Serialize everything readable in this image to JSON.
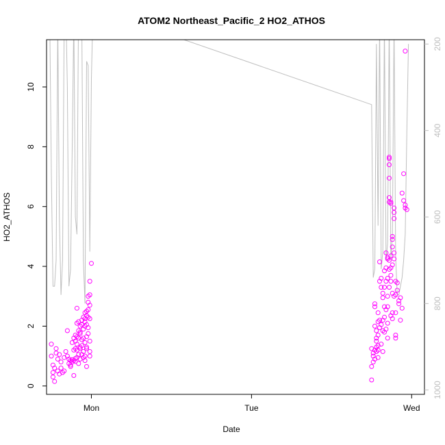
{
  "chart_data": {
    "type": "scatter",
    "title": "ATOM2 Northeast_Pacific_2 HO2_ATHOS",
    "xlabel": "Date",
    "ylabel": "HO2_ATHOS",
    "x_unit": "days since Mon 00:00",
    "xlim": [
      -0.28,
      2.08
    ],
    "ylim": [
      -0.28,
      11.58
    ],
    "x_ticks": [
      {
        "value": 0,
        "label": "Mon"
      },
      {
        "value": 1,
        "label": "Tue"
      },
      {
        "value": 2,
        "label": "Wed"
      }
    ],
    "y_ticks": [
      0,
      2,
      4,
      6,
      8,
      10
    ],
    "y2_ticks": [
      200,
      400,
      600,
      800,
      1000
    ],
    "y2lim": [
      1010,
      190
    ],
    "grid": false,
    "colors": {
      "points": "#ff00ff",
      "altitude_line": "#bebebe",
      "axis": "#000000"
    },
    "series": [
      {
        "role": "scatter-primary-axis",
        "values": [
          [
            -0.25,
            1.4
          ],
          [
            -0.25,
            1.0
          ],
          [
            -0.24,
            0.7
          ],
          [
            -0.24,
            0.45
          ],
          [
            -0.24,
            0.3
          ],
          [
            -0.23,
            0.15
          ],
          [
            -0.23,
            0.6
          ],
          [
            -0.22,
            1.1
          ],
          [
            -0.22,
            1.25
          ],
          [
            -0.21,
            0.9
          ],
          [
            -0.21,
            0.5
          ],
          [
            -0.2,
            0.4
          ],
          [
            -0.2,
            1.05
          ],
          [
            -0.19,
            0.8
          ],
          [
            -0.19,
            0.6
          ],
          [
            -0.18,
            0.45
          ],
          [
            -0.17,
            0.95
          ],
          [
            -0.17,
            0.5
          ],
          [
            -0.16,
            1.15
          ],
          [
            -0.15,
            1.85
          ],
          [
            -0.15,
            1.0
          ],
          [
            -0.14,
            0.75
          ],
          [
            -0.14,
            0.9
          ],
          [
            -0.13,
            0.85
          ],
          [
            -0.13,
            0.7
          ],
          [
            -0.13,
            0.65
          ],
          [
            -0.12,
            1.45
          ],
          [
            -0.12,
            0.88
          ],
          [
            -0.12,
            0.8
          ],
          [
            -0.11,
            0.35
          ],
          [
            -0.11,
            1.6
          ],
          [
            -0.11,
            1.2
          ],
          [
            -0.11,
            0.85
          ],
          [
            -0.1,
            1.25
          ],
          [
            -0.1,
            1.5
          ],
          [
            -0.1,
            0.82
          ],
          [
            -0.1,
            0.92
          ],
          [
            -0.1,
            1.7
          ],
          [
            -0.09,
            1.65
          ],
          [
            -0.09,
            2.1
          ],
          [
            -0.09,
            2.6
          ],
          [
            -0.09,
            0.95
          ],
          [
            -0.09,
            1.4
          ],
          [
            -0.09,
            1.2
          ],
          [
            -0.08,
            1.85
          ],
          [
            -0.08,
            0.75
          ],
          [
            -0.08,
            1.6
          ],
          [
            -0.08,
            2.15
          ],
          [
            -0.08,
            1.05
          ],
          [
            -0.07,
            1.3
          ],
          [
            -0.07,
            1.75
          ],
          [
            -0.07,
            2.0
          ],
          [
            -0.07,
            1.25
          ],
          [
            -0.07,
            1.8
          ],
          [
            -0.07,
            0.9
          ],
          [
            -0.06,
            2.2
          ],
          [
            -0.06,
            2.05
          ],
          [
            -0.06,
            1.55
          ],
          [
            -0.06,
            1.05
          ],
          [
            -0.06,
            1.35
          ],
          [
            -0.05,
            1.6
          ],
          [
            -0.05,
            2.3
          ],
          [
            -0.05,
            1.15
          ],
          [
            -0.05,
            0.95
          ],
          [
            -0.05,
            1.9
          ],
          [
            -0.04,
            2.45
          ],
          [
            -0.04,
            2.15
          ],
          [
            -0.04,
            1.45
          ],
          [
            -0.04,
            0.85
          ],
          [
            -0.04,
            2.0
          ],
          [
            -0.04,
            1.0
          ],
          [
            -0.04,
            2.25
          ],
          [
            -0.03,
            1.25
          ],
          [
            -0.03,
            2.5
          ],
          [
            -0.03,
            1.65
          ],
          [
            -0.03,
            2.35
          ],
          [
            -0.03,
            2.05
          ],
          [
            -0.03,
            1.3
          ],
          [
            -0.03,
            0.65
          ],
          [
            -0.02,
            2.55
          ],
          [
            -0.02,
            1.95
          ],
          [
            -0.02,
            2.8
          ],
          [
            -0.02,
            3.0
          ],
          [
            -0.02,
            1.75
          ],
          [
            -0.02,
            2.3
          ],
          [
            -0.01,
            3.05
          ],
          [
            -0.01,
            3.5
          ],
          [
            -0.01,
            2.7
          ],
          [
            -0.01,
            2.25
          ],
          [
            -0.01,
            1.0
          ],
          [
            -0.01,
            1.15
          ],
          [
            -0.01,
            1.5
          ],
          [
            0.0,
            4.1
          ]
        ]
      },
      {
        "role": "scatter-primary-axis-cont",
        "values": [
          [
            1.75,
            0.2
          ],
          [
            1.75,
            0.65
          ],
          [
            1.75,
            1.25
          ],
          [
            1.76,
            1.1
          ],
          [
            1.76,
            0.8
          ],
          [
            1.76,
            1.0
          ],
          [
            1.77,
            1.2
          ],
          [
            1.77,
            0.9
          ],
          [
            1.77,
            2.0
          ],
          [
            1.77,
            2.75
          ],
          [
            1.77,
            2.65
          ],
          [
            1.78,
            1.85
          ],
          [
            1.78,
            1.6
          ],
          [
            1.78,
            1.3
          ],
          [
            1.78,
            1.15
          ],
          [
            1.78,
            1.5
          ],
          [
            1.79,
            2.15
          ],
          [
            1.79,
            2.45
          ],
          [
            1.79,
            1.7
          ],
          [
            1.79,
            1.35
          ],
          [
            1.79,
            1.2
          ],
          [
            1.79,
            0.95
          ],
          [
            1.8,
            2.2
          ],
          [
            1.8,
            1.95
          ],
          [
            1.8,
            3.5
          ],
          [
            1.8,
            4.15
          ],
          [
            1.81,
            3.6
          ],
          [
            1.81,
            3.3
          ],
          [
            1.81,
            2.05
          ],
          [
            1.81,
            1.4
          ],
          [
            1.82,
            1.85
          ],
          [
            1.82,
            2.95
          ],
          [
            1.82,
            3.1
          ],
          [
            1.82,
            2.2
          ],
          [
            1.82,
            1.15
          ],
          [
            1.83,
            2.65
          ],
          [
            1.83,
            3.85
          ],
          [
            1.83,
            3.3
          ],
          [
            1.83,
            2.3
          ],
          [
            1.83,
            1.8
          ],
          [
            1.84,
            3.95
          ],
          [
            1.84,
            4.45
          ],
          [
            1.84,
            3.5
          ],
          [
            1.84,
            2.55
          ],
          [
            1.84,
            1.9
          ],
          [
            1.85,
            4.25
          ],
          [
            1.85,
            4.3
          ],
          [
            1.85,
            3.6
          ],
          [
            1.85,
            3.0
          ],
          [
            1.85,
            2.65
          ],
          [
            1.85,
            2.1
          ],
          [
            1.85,
            1.6
          ],
          [
            1.86,
            7.6
          ],
          [
            1.86,
            7.65
          ],
          [
            1.86,
            7.4
          ],
          [
            1.86,
            6.15
          ],
          [
            1.86,
            6.3
          ],
          [
            1.86,
            6.95
          ],
          [
            1.86,
            4.2
          ],
          [
            1.86,
            3.3
          ],
          [
            1.86,
            3.9
          ],
          [
            1.87,
            3.5
          ],
          [
            1.87,
            4.35
          ],
          [
            1.87,
            6.15
          ],
          [
            1.87,
            6.1
          ],
          [
            1.87,
            3.95
          ],
          [
            1.87,
            3.7
          ],
          [
            1.87,
            2.35
          ],
          [
            1.88,
            4.05
          ],
          [
            1.88,
            4.65
          ],
          [
            1.88,
            5.0
          ],
          [
            1.88,
            4.9
          ],
          [
            1.88,
            2.45
          ],
          [
            1.88,
            2.25
          ],
          [
            1.88,
            3.1
          ],
          [
            1.89,
            5.95
          ],
          [
            1.89,
            5.8
          ],
          [
            1.89,
            5.6
          ],
          [
            1.89,
            4.45
          ],
          [
            1.89,
            4.25
          ],
          [
            1.89,
            3.0
          ],
          [
            1.9,
            1.6
          ],
          [
            1.9,
            1.7
          ],
          [
            1.9,
            2.45
          ],
          [
            1.9,
            3.5
          ],
          [
            1.9,
            3.05
          ],
          [
            1.91,
            3.45
          ],
          [
            1.91,
            3.2
          ],
          [
            1.92,
            2.85
          ],
          [
            1.92,
            2.75
          ],
          [
            1.93,
            2.95
          ],
          [
            1.93,
            2.2
          ],
          [
            1.94,
            2.6
          ],
          [
            1.94,
            6.45
          ],
          [
            1.95,
            7.1
          ],
          [
            1.95,
            6.2
          ],
          [
            1.96,
            5.95
          ],
          [
            1.96,
            6.05
          ],
          [
            1.96,
            11.2
          ],
          [
            1.97,
            5.9
          ]
        ]
      },
      {
        "role": "altitude-line-secondary-axis",
        "values": [
          [
            -0.26,
            145
          ],
          [
            -0.25,
            500
          ],
          [
            -0.24,
            760
          ],
          [
            -0.23,
            760
          ],
          [
            -0.22,
            700
          ],
          [
            -0.21,
            150
          ],
          [
            -0.2,
            600
          ],
          [
            -0.19,
            780
          ],
          [
            -0.18,
            700
          ],
          [
            -0.17,
            160
          ],
          [
            -0.16,
            110
          ],
          [
            -0.15,
            300
          ],
          [
            -0.14,
            760
          ],
          [
            -0.13,
            720
          ],
          [
            -0.12,
            450
          ],
          [
            -0.11,
            140
          ],
          [
            -0.1,
            600
          ],
          [
            -0.09,
            640
          ],
          [
            -0.08,
            100
          ],
          [
            -0.07,
            100
          ],
          [
            -0.06,
            150
          ],
          [
            -0.05,
            700
          ],
          [
            -0.04,
            800
          ],
          [
            -0.03,
            240
          ],
          [
            -0.02,
            250
          ],
          [
            -0.01,
            680
          ],
          [
            0.0,
            280
          ],
          [
            0.01,
            120
          ],
          [
            0.5,
            180
          ],
          [
            1.75,
            340
          ],
          [
            1.76,
            740
          ],
          [
            1.77,
            720
          ],
          [
            1.78,
            200
          ],
          [
            1.79,
            620
          ],
          [
            1.8,
            150
          ],
          [
            1.81,
            720
          ],
          [
            1.82,
            680
          ],
          [
            1.83,
            150
          ],
          [
            1.84,
            700
          ],
          [
            1.85,
            660
          ],
          [
            1.86,
            150
          ],
          [
            1.87,
            700
          ],
          [
            1.88,
            640
          ],
          [
            1.89,
            150
          ],
          [
            1.9,
            690
          ],
          [
            1.91,
            780
          ],
          [
            1.92,
            780
          ],
          [
            1.93,
            760
          ],
          [
            1.94,
            740
          ],
          [
            1.95,
            700
          ],
          [
            1.96,
            640
          ],
          [
            1.97,
            400
          ],
          [
            1.98,
            200
          ]
        ]
      }
    ]
  }
}
